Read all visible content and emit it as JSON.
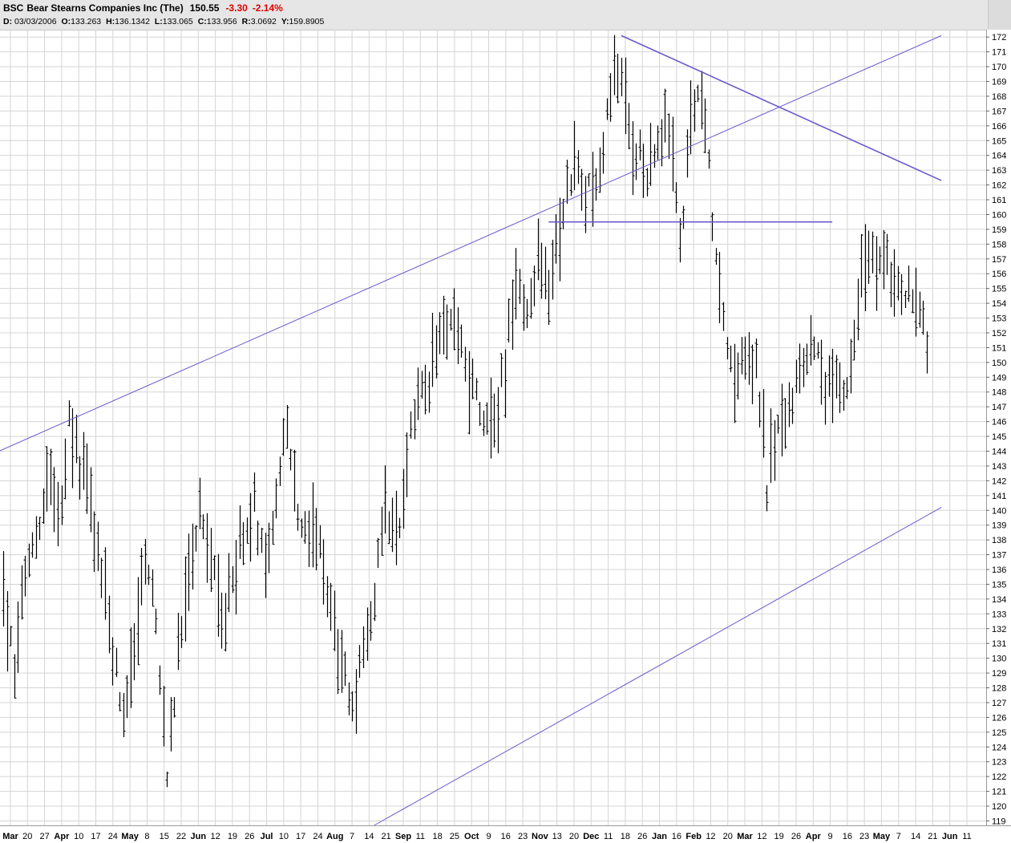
{
  "header": {
    "symbol": "BSC",
    "name": "Bear Stearns Companies Inc (The)",
    "last": "150.55",
    "change": "-3.30",
    "change_pct": "-2.14%",
    "info": {
      "d_label": "D:",
      "d_value": "03/03/2006",
      "o_label": "O:",
      "o_value": "133.263",
      "h_label": "H:",
      "h_value": "136.1342",
      "l_label": "L:",
      "l_value": "133.065",
      "c_label": "C:",
      "c_value": "133.956",
      "r_label": "R:",
      "r_value": "3.0692",
      "y_label": "Y:",
      "y_value": "159.8905"
    }
  },
  "chart_data": {
    "type": "ohlc",
    "y_ticks": [
      172,
      171,
      170,
      169,
      168,
      167,
      166,
      165,
      164,
      163,
      162,
      161,
      160,
      159,
      158,
      157,
      156,
      155,
      154,
      153,
      152,
      151,
      150,
      149,
      148,
      147,
      146,
      145,
      144,
      143,
      142,
      141,
      140,
      139,
      138,
      137,
      136,
      135,
      134,
      133,
      132,
      131,
      130,
      129,
      128,
      127,
      126,
      125,
      124,
      123,
      122,
      121,
      120,
      119
    ],
    "ylim": [
      118.7,
      172.5
    ],
    "x_range_days": [
      0,
      74
    ],
    "x_labels": [
      {
        "t": "Mar",
        "bold": true
      },
      {
        "t": "20"
      },
      {
        "t": "27"
      },
      {
        "t": "Apr",
        "bold": true
      },
      {
        "t": "10"
      },
      {
        "t": "17"
      },
      {
        "t": "24"
      },
      {
        "t": "May",
        "bold": true
      },
      {
        "t": "8"
      },
      {
        "t": "15"
      },
      {
        "t": "22"
      },
      {
        "t": "Jun",
        "bold": true
      },
      {
        "t": "12"
      },
      {
        "t": "19"
      },
      {
        "t": "26"
      },
      {
        "t": "Jul",
        "bold": true
      },
      {
        "t": "10"
      },
      {
        "t": "17"
      },
      {
        "t": "24"
      },
      {
        "t": "Aug",
        "bold": true
      },
      {
        "t": "7"
      },
      {
        "t": "14"
      },
      {
        "t": "21"
      },
      {
        "t": "Sep",
        "bold": true
      },
      {
        "t": "11"
      },
      {
        "t": "18"
      },
      {
        "t": "25"
      },
      {
        "t": "Oct",
        "bold": true
      },
      {
        "t": "9"
      },
      {
        "t": "16"
      },
      {
        "t": "23"
      },
      {
        "t": "Nov",
        "bold": true
      },
      {
        "t": "13"
      },
      {
        "t": "20"
      },
      {
        "t": "Dec",
        "bold": true
      },
      {
        "t": "11"
      },
      {
        "t": "18"
      },
      {
        "t": "26"
      },
      {
        "t": "Jan",
        "bold": true
      },
      {
        "t": "16"
      },
      {
        "t": "Feb",
        "bold": true
      },
      {
        "t": "12"
      },
      {
        "t": "20"
      },
      {
        "t": "Mar",
        "bold": true
      },
      {
        "t": "12"
      },
      {
        "t": "19"
      },
      {
        "t": "26"
      },
      {
        "t": "Apr",
        "bold": true
      },
      {
        "t": "9"
      },
      {
        "t": "16"
      },
      {
        "t": "23"
      },
      {
        "t": "May",
        "bold": true
      },
      {
        "t": "7"
      },
      {
        "t": "14"
      },
      {
        "t": "21"
      },
      {
        "t": "Jun",
        "bold": true
      },
      {
        "t": "11"
      }
    ],
    "path_points": [
      [
        0,
        133.5
      ],
      [
        3,
        130
      ],
      [
        6,
        136
      ],
      [
        9,
        138.5
      ],
      [
        12,
        142
      ],
      [
        15,
        139.5
      ],
      [
        18,
        146
      ],
      [
        21,
        143
      ],
      [
        24,
        141.5
      ],
      [
        27,
        136
      ],
      [
        30,
        130.5
      ],
      [
        33,
        126
      ],
      [
        36,
        130.5
      ],
      [
        39,
        137
      ],
      [
        42,
        132
      ],
      [
        45,
        122
      ],
      [
        48,
        130
      ],
      [
        51,
        135
      ],
      [
        54,
        141
      ],
      [
        57,
        137
      ],
      [
        60,
        132
      ],
      [
        63,
        136.5
      ],
      [
        66,
        138
      ],
      [
        69,
        140
      ],
      [
        72,
        136
      ],
      [
        75,
        142
      ],
      [
        78,
        146
      ],
      [
        81,
        140
      ],
      [
        84,
        138.5
      ],
      [
        87,
        137.5
      ],
      [
        90,
        133
      ],
      [
        93,
        129
      ],
      [
        96,
        127.5
      ],
      [
        99,
        130
      ],
      [
        102,
        135
      ],
      [
        105,
        140
      ],
      [
        108,
        138.5
      ],
      [
        111,
        143
      ],
      [
        114,
        147.5
      ],
      [
        117,
        148.5
      ],
      [
        120,
        152
      ],
      [
        123,
        153
      ],
      [
        126,
        151
      ],
      [
        129,
        148
      ],
      [
        132,
        146.5
      ],
      [
        135,
        145
      ],
      [
        138,
        150
      ],
      [
        141,
        155
      ],
      [
        144,
        153
      ],
      [
        147,
        157.5
      ],
      [
        150,
        155.5
      ],
      [
        153,
        159
      ],
      [
        156,
        163
      ],
      [
        159,
        162
      ],
      [
        162,
        161
      ],
      [
        165,
        164.5
      ],
      [
        168,
        170
      ],
      [
        171,
        168
      ],
      [
        174,
        164
      ],
      [
        177,
        162
      ],
      [
        180,
        165
      ],
      [
        183,
        166
      ],
      [
        186,
        158
      ],
      [
        189,
        166
      ],
      [
        192,
        168.5
      ],
      [
        195,
        160
      ],
      [
        198,
        152
      ],
      [
        201,
        148
      ],
      [
        204,
        151
      ],
      [
        207,
        150.5
      ],
      [
        210,
        142
      ],
      [
        213,
        146
      ],
      [
        216,
        147
      ],
      [
        219,
        149.5
      ],
      [
        222,
        151.5
      ],
      [
        225,
        149
      ],
      [
        228,
        148
      ],
      [
        231,
        147
      ],
      [
        234,
        152
      ],
      [
        237,
        157.5
      ],
      [
        240,
        157
      ],
      [
        243,
        156
      ],
      [
        246,
        155
      ],
      [
        249,
        154
      ],
      [
        252,
        153.5
      ],
      [
        254,
        150.5
      ]
    ],
    "trendlines": [
      {
        "from": [
          -3,
          143.8
        ],
        "to": [
          258,
          172.1
        ],
        "style": "thin"
      },
      {
        "from": [
          170,
          172.1
        ],
        "to": [
          258,
          162.3
        ],
        "style": "thick"
      },
      {
        "from": [
          150,
          159.5
        ],
        "to": [
          228,
          159.5
        ],
        "style": "thick"
      },
      {
        "from": [
          102,
          118.7
        ],
        "to": [
          258,
          140.2
        ],
        "style": "thin"
      }
    ],
    "colors": {
      "bars": "#000000",
      "grid": "#d4d4d4",
      "trend": "#6a5acd",
      "background": "#ffffff"
    }
  }
}
